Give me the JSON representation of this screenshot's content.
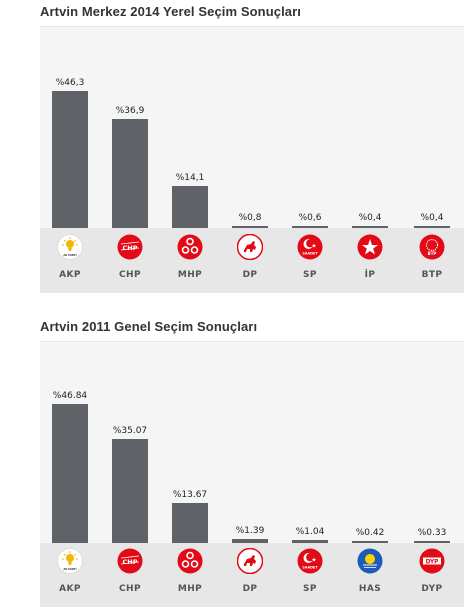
{
  "chart_data": [
    {
      "type": "bar",
      "title": "Artvin Merkez 2014 Yerel Seçim Sonuçları",
      "categories": [
        "AKP",
        "CHP",
        "MHP",
        "DP",
        "SP",
        "İP",
        "BTP"
      ],
      "values": [
        46.3,
        36.9,
        14.1,
        0.8,
        0.6,
        0.4,
        0.4
      ],
      "value_labels": [
        "%46,3",
        "%36,9",
        "%14,1",
        "%0,8",
        "%0,6",
        "%0,4",
        "%0,4"
      ],
      "logos": [
        "akp-logo-icon",
        "chp-logo-icon",
        "mhp-logo-icon",
        "dp-logo-icon",
        "sp-logo-icon",
        "ip-logo-icon",
        "btp-logo-icon"
      ],
      "logo_texts": [
        "AK PARTİ",
        "CHP",
        "",
        "",
        "SAADET",
        "",
        "BTP"
      ],
      "ylim": [
        0,
        50
      ],
      "bar_color": "#5f6368"
    },
    {
      "type": "bar",
      "title": "Artvin 2011 Genel Seçim Sonuçları",
      "categories": [
        "AKP",
        "CHP",
        "MHP",
        "DP",
        "SP",
        "HAS",
        "DYP"
      ],
      "values": [
        46.84,
        35.07,
        13.67,
        1.39,
        1.04,
        0.42,
        0.33
      ],
      "value_labels": [
        "%46.84",
        "%35.07",
        "%13.67",
        "%1.39",
        "%1.04",
        "%0.42",
        "%0.33"
      ],
      "logos": [
        "akp-logo-icon",
        "chp-logo-icon",
        "mhp-logo-icon",
        "dp-logo-icon",
        "sp-logo-icon",
        "has-logo-icon",
        "dyp-logo-icon"
      ],
      "logo_texts": [
        "AK PARTİ",
        "CHP",
        "",
        "",
        "SAADET",
        "",
        "DYP"
      ],
      "ylim": [
        0,
        50
      ],
      "bar_color": "#5f6368"
    }
  ]
}
